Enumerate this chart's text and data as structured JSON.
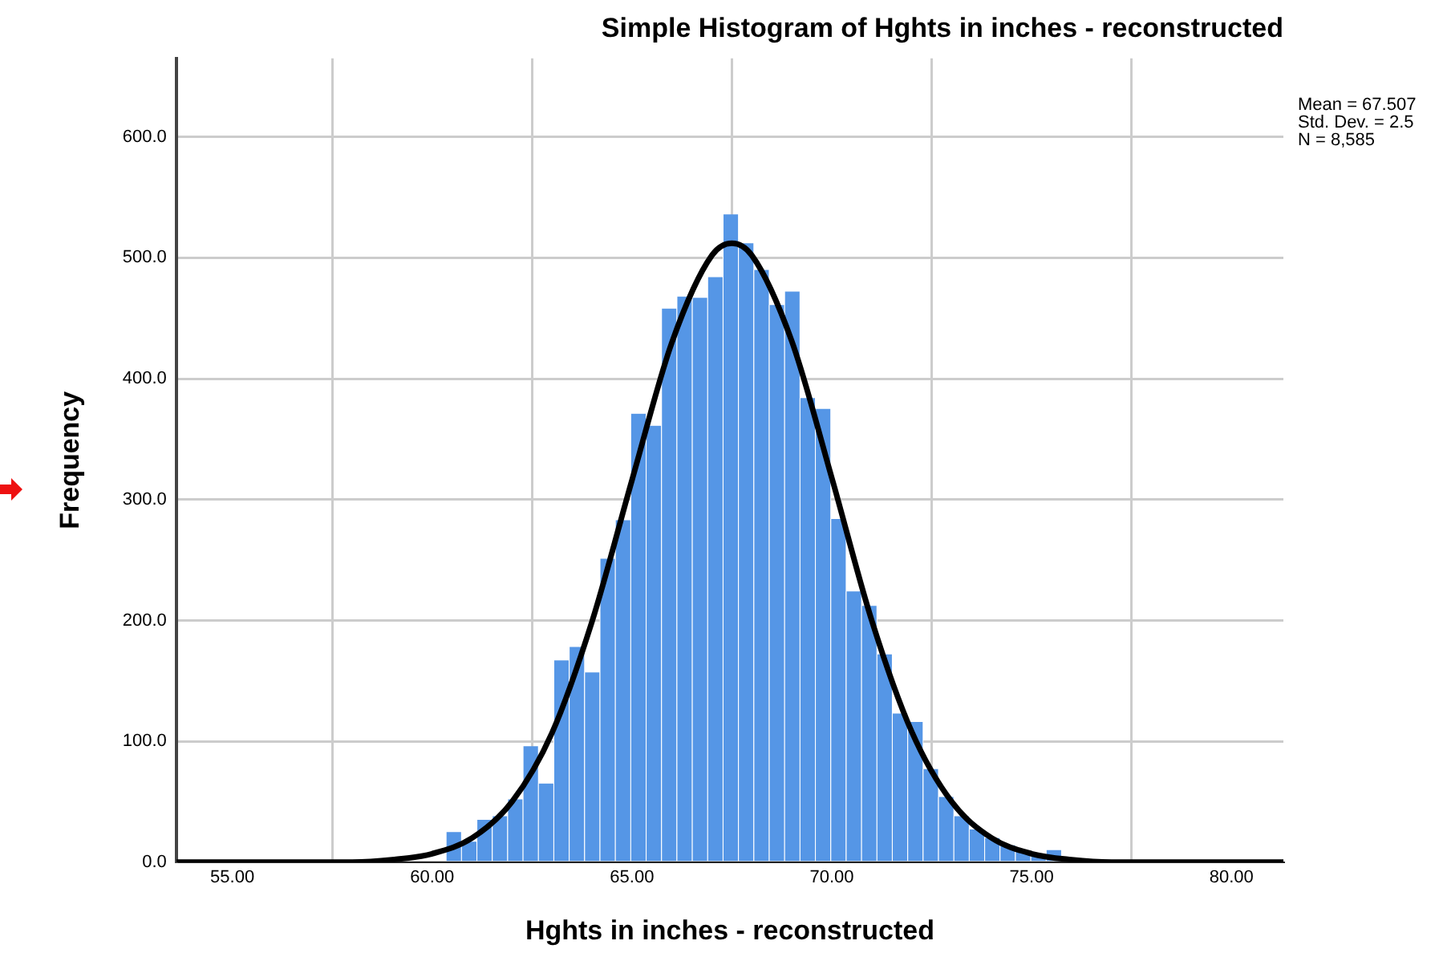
{
  "chart_data": {
    "type": "histogram",
    "title": "Simple Histogram of Hghts in inches - reconstructed",
    "xlabel": "Hghts in inches - reconstructed",
    "ylabel": "Frequency",
    "bins": [
      60.35,
      60.735,
      61.12,
      61.505,
      61.89,
      62.275,
      62.66,
      63.045,
      63.43,
      63.815,
      64.2,
      64.585,
      64.97,
      65.355,
      65.74,
      66.125,
      66.51,
      66.895,
      67.28,
      67.665,
      68.05,
      68.435,
      68.82,
      69.205,
      69.59,
      69.975,
      70.36,
      70.745,
      71.13,
      71.515,
      71.9,
      72.285,
      72.67,
      73.055,
      73.44,
      73.825,
      74.21,
      74.595,
      74.98,
      75.365,
      75.75
    ],
    "values": [
      25,
      17,
      35,
      38,
      52,
      96,
      65,
      167,
      178,
      157,
      251,
      283,
      371,
      361,
      458,
      468,
      467,
      484,
      536,
      512,
      490,
      461,
      472,
      384,
      375,
      284,
      224,
      212,
      172,
      123,
      116,
      77,
      54,
      38,
      27,
      20,
      14,
      9,
      6,
      10
    ],
    "color": "#5596e6",
    "series": [
      {
        "type": "line",
        "color": "#000000",
        "x": [
          53.6,
          56,
          58,
          59,
          60,
          61,
          62,
          63,
          64,
          65,
          66,
          67,
          67.5,
          68,
          69,
          70,
          71,
          72,
          73,
          74,
          75,
          76,
          77,
          79,
          81.3
        ],
        "values": [
          0,
          0,
          0,
          2,
          7,
          20,
          50,
          107,
          199,
          316,
          430,
          502,
          512,
          502,
          431,
          318,
          200,
          108,
          50,
          20,
          7,
          2,
          0,
          0,
          0
        ]
      }
    ],
    "xlim": [
      53.6,
      81.3
    ],
    "ylim": [
      0,
      665
    ],
    "xticks": [
      {
        "value": 55,
        "label": "55.00"
      },
      {
        "value": 60,
        "label": "60.00"
      },
      {
        "value": 65,
        "label": "65.00"
      },
      {
        "value": 70,
        "label": "70.00"
      },
      {
        "value": 75,
        "label": "75.00"
      },
      {
        "value": 80,
        "label": "80.00"
      }
    ],
    "yticks": [
      {
        "value": 0,
        "label": "0.0"
      },
      {
        "value": 100,
        "label": "100.0"
      },
      {
        "value": 200,
        "label": "200.0"
      },
      {
        "value": 300,
        "label": "300.0"
      },
      {
        "value": 400,
        "label": "400.0"
      },
      {
        "value": 500,
        "label": "500.0"
      },
      {
        "value": 600,
        "label": "600.0"
      }
    ],
    "grid": true,
    "legend": false,
    "annotations": [
      "Mean = 67.507",
      "Std. Dev. = 2.5",
      "N = 8,585"
    ]
  }
}
